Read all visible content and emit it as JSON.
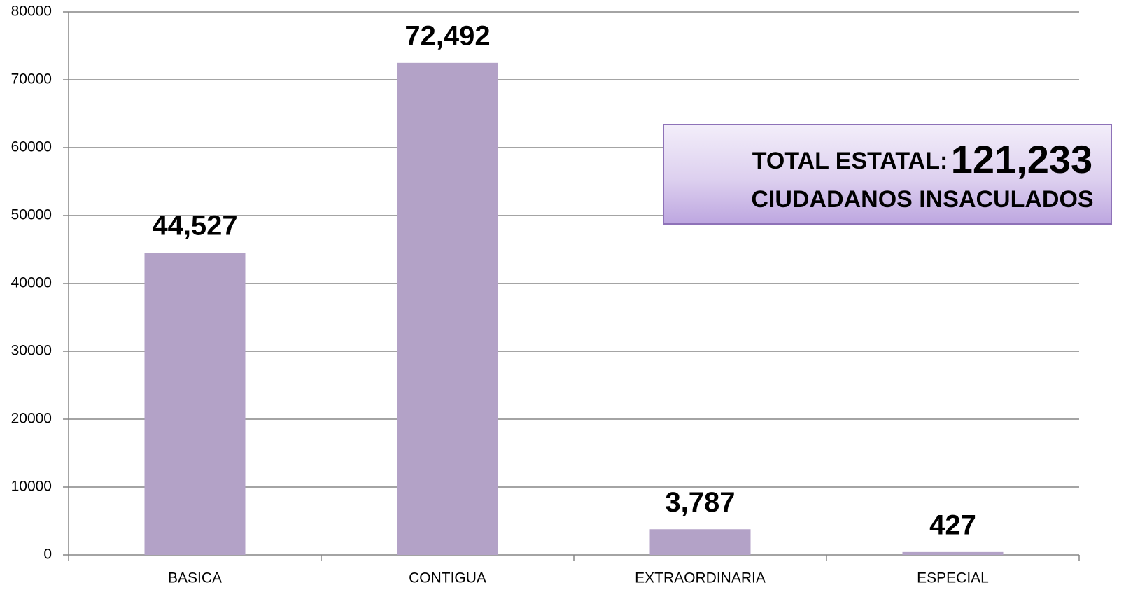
{
  "chart_data": {
    "type": "bar",
    "categories": [
      "BASICA",
      "CONTIGUA",
      "EXTRAORDINARIA",
      "ESPECIAL"
    ],
    "values": [
      44527,
      72492,
      3787,
      427
    ],
    "value_labels": [
      "44,527",
      "72,492",
      "3,787",
      "427"
    ],
    "color": "#b3a2c7",
    "ylim": [
      0,
      80000
    ],
    "yticks": [
      0,
      10000,
      20000,
      30000,
      40000,
      50000,
      60000,
      70000,
      80000
    ],
    "grid": true,
    "annotation": {
      "label": "TOTAL ESTATAL:",
      "total": "121,233",
      "subtitle": "CIUDADANOS INSACULADOS"
    }
  }
}
